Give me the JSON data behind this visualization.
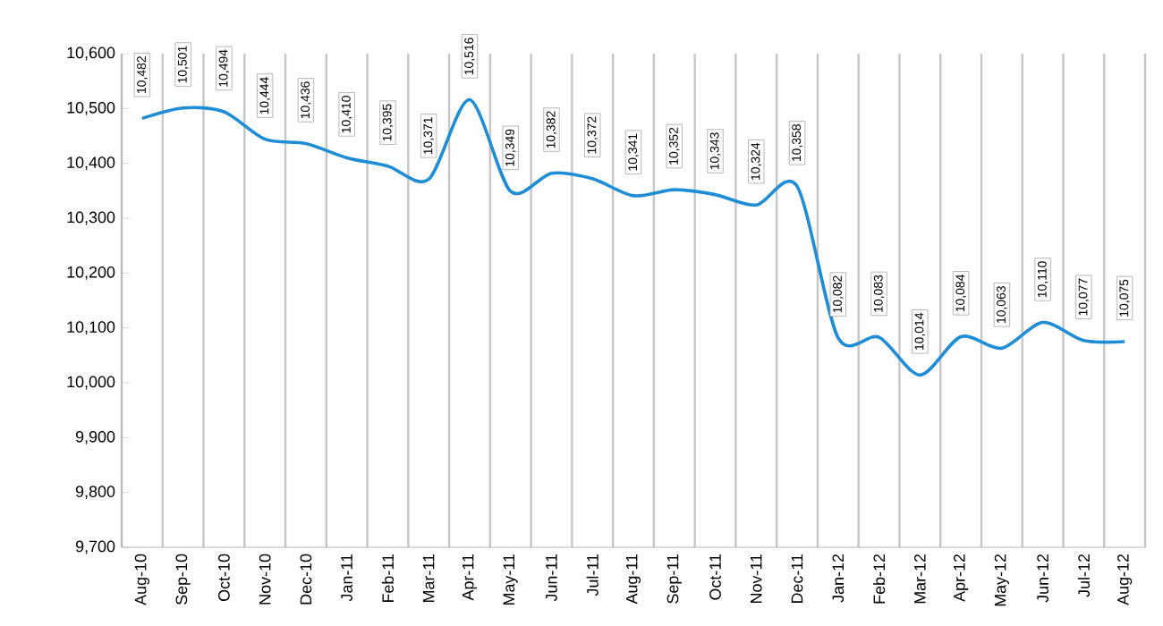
{
  "chart_data": {
    "type": "line",
    "categories": [
      "Aug-10",
      "Sep-10",
      "Oct-10",
      "Nov-10",
      "Dec-10",
      "Jan-11",
      "Feb-11",
      "Mar-11",
      "Apr-11",
      "May-11",
      "Jun-11",
      "Jul-11",
      "Aug-11",
      "Sep-11",
      "Oct-11",
      "Nov-11",
      "Dec-11",
      "Jan-12",
      "Feb-12",
      "Mar-12",
      "Apr-12",
      "May-12",
      "Jun-12",
      "Jul-12",
      "Aug-12"
    ],
    "values": [
      10482,
      10501,
      10494,
      10444,
      10436,
      10410,
      10395,
      10371,
      10516,
      10349,
      10382,
      10372,
      10341,
      10352,
      10343,
      10324,
      10358,
      10082,
      10083,
      10014,
      10084,
      10063,
      10110,
      10077,
      10075
    ],
    "value_labels": [
      "10,482",
      "10,501",
      "10,494",
      "10,444",
      "10,436",
      "10,410",
      "10,395",
      "10,371",
      "10,516",
      "10,349",
      "10,382",
      "10,372",
      "10,341",
      "10,352",
      "10,343",
      "10,324",
      "10,358",
      "10,082",
      "10,083",
      "10,014",
      "10,084",
      "10,063",
      "10,110",
      "10,077",
      "10,075"
    ],
    "color": "#1f8dd6",
    "ylim": [
      9700,
      10600
    ],
    "yticks": [
      {
        "value": 9700,
        "label": "9,700"
      },
      {
        "value": 9800,
        "label": "9,800"
      },
      {
        "value": 9900,
        "label": "9,900"
      },
      {
        "value": 10000,
        "label": "10,000"
      },
      {
        "value": 10100,
        "label": "10,100"
      },
      {
        "value": 10200,
        "label": "10,200"
      },
      {
        "value": 10300,
        "label": "10,300"
      },
      {
        "value": 10400,
        "label": "10,400"
      },
      {
        "value": 10500,
        "label": "10,500"
      },
      {
        "value": 10600,
        "label": "10,600"
      }
    ],
    "grid": "x",
    "marker": "none",
    "line_style": "solid"
  }
}
